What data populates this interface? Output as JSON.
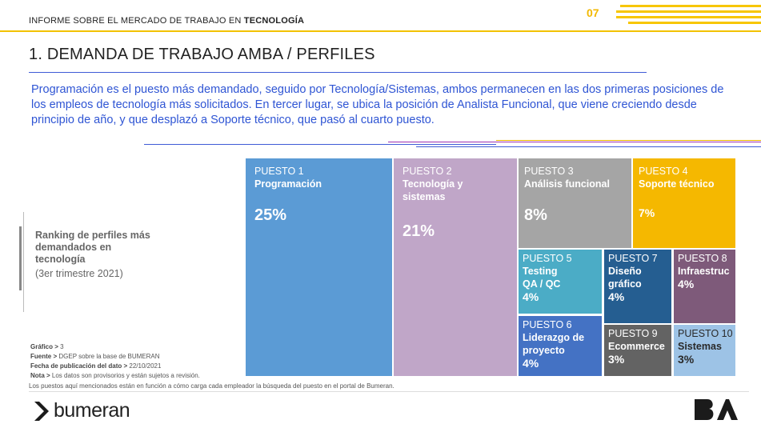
{
  "header": {
    "report_prefix": "INFORME SOBRE EL MERCADO DE TRABAJO EN ",
    "report_bold": "TECNOLOGÍA",
    "page_number": "07",
    "accent_color": "#f2c200"
  },
  "section_title": "1. DEMANDA DE TRABAJO AMBA / PERFILES",
  "intro_text": "Programación es el puesto más demandado, seguido por Tecnología/Sistemas, ambos permanecen en las dos primeras posiciones de los empleos de tecnología más solicitados. En tercer lugar, se ubica la posición de Analista Funcional, que viene creciendo desde principio de año, y que desplazó a Soporte técnico, que pasó al cuarto puesto.",
  "side": {
    "label": "Ranking de perfiles más demandados en tecnología",
    "period": "(3er  trimestre 2021)"
  },
  "chart_data": {
    "type": "treemap",
    "unit": "%",
    "items": [
      {
        "rank": "PUESTO 1",
        "name": "Programación",
        "value": 25,
        "value_label": "25%",
        "color": "#5b9bd5"
      },
      {
        "rank": "PUESTO 2",
        "name": "Tecnología y sistemas",
        "value": 21,
        "value_label": "21%",
        "color": "#c0a6c8"
      },
      {
        "rank": "PUESTO 3",
        "name": "Análisis funcional",
        "value": 8,
        "value_label": "8%",
        "color": "#a5a5a5"
      },
      {
        "rank": "PUESTO 4",
        "name": "Soporte técnico",
        "value": 7,
        "value_label": "7%",
        "color": "#f5b800"
      },
      {
        "rank": "PUESTO 5",
        "name": "Testing QA / QC",
        "value": 4,
        "value_label": "4%",
        "color": "#4bacc6"
      },
      {
        "rank": "PUESTO 6",
        "name": "Liderazgo de proyecto",
        "value": 4,
        "value_label": "4%",
        "color": "#4472c4"
      },
      {
        "rank": "PUESTO 7",
        "name": "Diseño gráfico",
        "value": 4,
        "value_label": "4%",
        "color": "#255e91"
      },
      {
        "rank": "PUESTO 8",
        "name": "Infraestruc",
        "value": 4,
        "value_label": "4%",
        "color": "#7e5a7a"
      },
      {
        "rank": "PUESTO 9",
        "name": "Ecommerce",
        "value": 3,
        "value_label": "3%",
        "color": "#636363"
      },
      {
        "rank": "PUESTO 10",
        "name": "Sistemas",
        "value": 3,
        "value_label": "3%",
        "color": "#9dc3e6"
      }
    ]
  },
  "notes": {
    "grafico_label": "Gráfico >",
    "grafico_value": "3",
    "fuente_label": "Fuente >",
    "fuente_value": "DGEP sobre la base de BUMERAN",
    "fecha_label": "Fecha de publicación del dato >",
    "fecha_value": "22/10/2021",
    "nota_label": "Nota >",
    "nota_value": "Los datos son provisorios y están sujetos a revisión.",
    "puestos_note": "Los puestos aquí mencionados están en función a cómo carga cada empleador la búsqueda del puesto en el portal de Bumeran."
  },
  "footer": {
    "brand": "bumeran",
    "brand_icon": "bumeran-logo-icon",
    "ba_logo": "ba-logo"
  }
}
